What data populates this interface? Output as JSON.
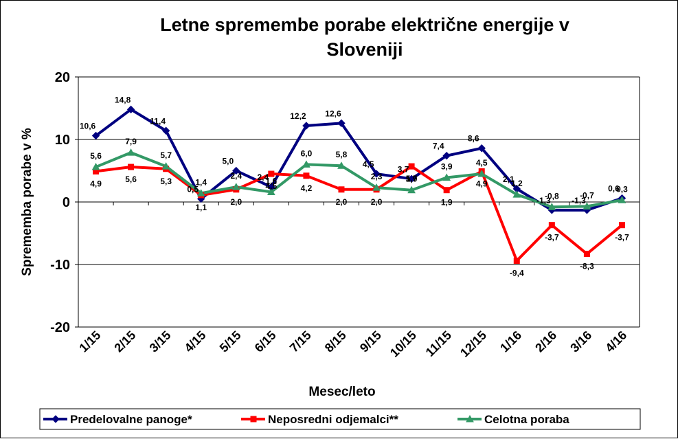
{
  "chart_data": {
    "type": "line",
    "title_lines": [
      "Letne spremembe porabe električne energije v",
      "Sloveniji"
    ],
    "xlabel": "Mesec/leto",
    "ylabel": "Sprememba porabe v %",
    "ylim": [
      -20,
      20
    ],
    "yticks": [
      "20",
      "10",
      "0",
      "-10",
      "-20"
    ],
    "grid": true,
    "legend_position": "bottom",
    "categories": [
      "1/15",
      "2/15",
      "3/15",
      "4/15",
      "5/15",
      "6/15",
      "7/15",
      "8/15",
      "9/15",
      "10/15",
      "11/15",
      "12/15",
      "1/16",
      "2/16",
      "3/16",
      "4/16"
    ],
    "series": [
      {
        "name": "Predelovalne panoge*",
        "color": "#000080",
        "marker": "diamond",
        "values": [
          10.6,
          14.8,
          11.4,
          0.5,
          5.0,
          2.4,
          12.2,
          12.6,
          4.5,
          3.7,
          7.4,
          8.6,
          2.1,
          -1.3,
          -1.3,
          0.6
        ],
        "labels": [
          "10,6",
          "14,8",
          "11,4",
          "0,5",
          "5,0",
          "2,4",
          "12,2",
          "12,6",
          "4,5",
          "3,7",
          "7,4",
          "8,6",
          "2,1",
          "-1,3",
          "-1,3",
          "0,6"
        ]
      },
      {
        "name": "Neposredni odjemalci**",
        "color": "#ff0000",
        "marker": "square",
        "values": [
          4.9,
          5.6,
          5.3,
          1.1,
          2.0,
          4.5,
          4.2,
          2.0,
          2.0,
          5.7,
          1.9,
          4.9,
          -9.4,
          -3.7,
          -8.3,
          -3.7
        ],
        "labels": [
          "4,9",
          "5,6",
          "5,3",
          "1,1",
          "2,0",
          "4,5",
          "4,2",
          "2,0",
          "2,0",
          "5,7",
          "1,9",
          "4,9",
          "-9,4",
          "-3,7",
          "-8,3",
          "-3,7"
        ]
      },
      {
        "name": "Celotna poraba",
        "color": "#339966",
        "marker": "triangle",
        "values": [
          5.6,
          7.9,
          5.7,
          1.4,
          2.4,
          1.6,
          6.0,
          5.8,
          2.3,
          1.9,
          3.9,
          4.5,
          1.2,
          -0.8,
          -0.7,
          0.3
        ],
        "labels": [
          "5,6",
          "7,9",
          "5,7",
          "1,4",
          "2,4",
          "1,6",
          "6,0",
          "5,8",
          "2,3",
          "1,9",
          "3,9",
          "4,5",
          "1,2",
          "-0,8",
          "-0,7",
          "0,3"
        ]
      }
    ]
  }
}
